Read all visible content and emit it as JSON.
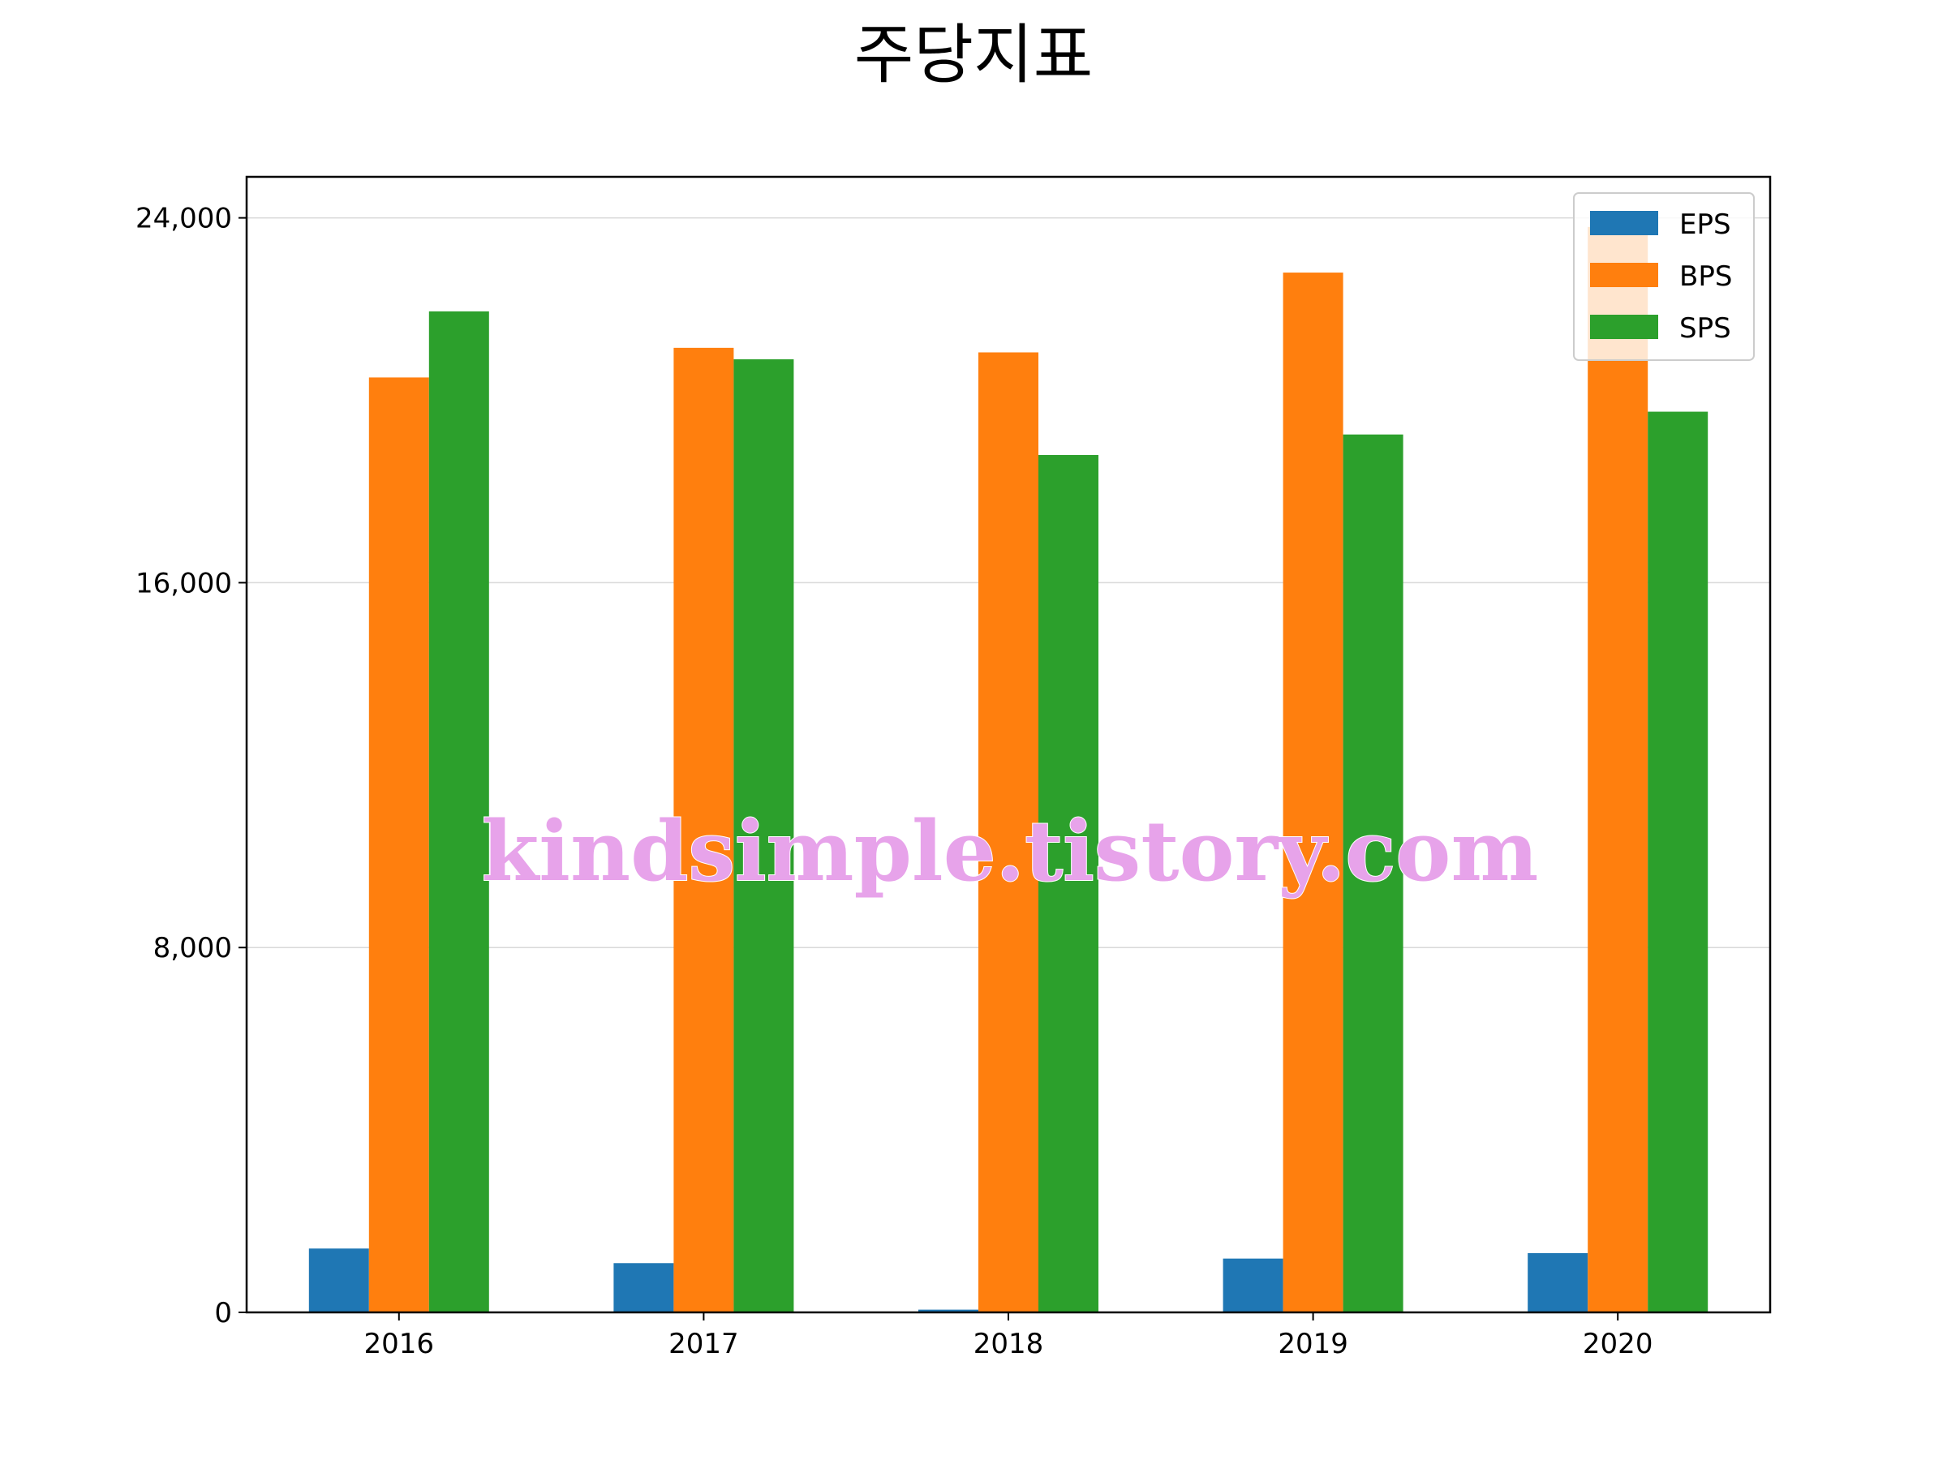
{
  "chart_data": {
    "type": "bar",
    "title": "주당지표",
    "xlabel": "",
    "ylabel": "",
    "categories": [
      "2016",
      "2017",
      "2018",
      "2019",
      "2020"
    ],
    "series": [
      {
        "name": "EPS",
        "color": "#1f77b4",
        "values": [
          1400,
          1080,
          60,
          1180,
          1300
        ]
      },
      {
        "name": "BPS",
        "color": "#ff7f0e",
        "values": [
          20500,
          21150,
          21050,
          22800,
          23800
        ]
      },
      {
        "name": "SPS",
        "color": "#2ca02c",
        "values": [
          21950,
          20900,
          18800,
          19250,
          19750
        ]
      }
    ],
    "ylim": [
      0,
      24900
    ],
    "yticks": [
      0,
      8000,
      16000,
      24000
    ],
    "ytick_labels": [
      "0",
      "8,000",
      "16,000",
      "24,000"
    ],
    "grid": "y",
    "legend": "top-right",
    "watermark": "kindsimple.tistory.com"
  }
}
